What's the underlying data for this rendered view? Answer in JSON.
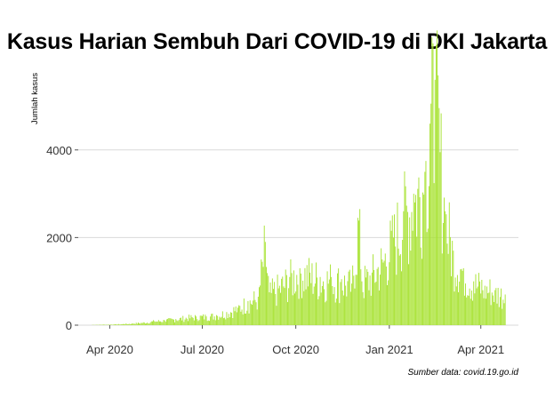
{
  "chart_data": {
    "type": "bar",
    "title": "Kasus Harian Sembuh Dari COVID-19 di DKI Jakarta",
    "ylabel": "Jumlah kasus",
    "xlabel": "",
    "caption": "Sumber data: covid.19.go.id",
    "bar_color": "#a6e22e",
    "grid": true,
    "ylim": [
      0,
      5800
    ],
    "xlim": [
      "2020-03-01",
      "2021-05-08"
    ],
    "y_ticks": [
      0,
      2000,
      4000
    ],
    "y_tick_labels": [
      "0",
      "2000",
      "4000"
    ],
    "x_ticks": [
      "2020-04-01",
      "2020-07-01",
      "2020-10-01",
      "2021-01-01",
      "2021-04-01"
    ],
    "x_tick_labels": [
      "Apr 2020",
      "Jul 2020",
      "Oct 2020",
      "Jan 2021",
      "Apr 2021"
    ],
    "series": [
      {
        "x": "2020-03-15",
        "y": 5
      },
      {
        "x": "2020-03-25",
        "y": 10
      },
      {
        "x": "2020-04-05",
        "y": 15
      },
      {
        "x": "2020-04-15",
        "y": 25
      },
      {
        "x": "2020-04-25",
        "y": 40
      },
      {
        "x": "2020-05-05",
        "y": 60
      },
      {
        "x": "2020-05-15",
        "y": 90
      },
      {
        "x": "2020-05-25",
        "y": 110
      },
      {
        "x": "2020-06-05",
        "y": 140
      },
      {
        "x": "2020-06-15",
        "y": 170
      },
      {
        "x": "2020-06-25",
        "y": 200
      },
      {
        "x": "2020-07-05",
        "y": 200
      },
      {
        "x": "2020-07-15",
        "y": 230
      },
      {
        "x": "2020-07-25",
        "y": 300
      },
      {
        "x": "2020-08-05",
        "y": 400
      },
      {
        "x": "2020-08-15",
        "y": 550
      },
      {
        "x": "2020-08-25",
        "y": 650
      },
      {
        "x": "2020-09-01",
        "y": 1900
      },
      {
        "x": "2020-09-05",
        "y": 750
      },
      {
        "x": "2020-09-15",
        "y": 900
      },
      {
        "x": "2020-09-25",
        "y": 1100
      },
      {
        "x": "2020-10-05",
        "y": 1300
      },
      {
        "x": "2020-10-15",
        "y": 1200
      },
      {
        "x": "2020-10-25",
        "y": 1100
      },
      {
        "x": "2020-11-05",
        "y": 1100
      },
      {
        "x": "2020-11-15",
        "y": 1050
      },
      {
        "x": "2020-11-25",
        "y": 950
      },
      {
        "x": "2020-12-03",
        "y": 2650
      },
      {
        "x": "2020-12-05",
        "y": 1000
      },
      {
        "x": "2020-12-15",
        "y": 1200
      },
      {
        "x": "2020-12-25",
        "y": 1500
      },
      {
        "x": "2021-01-05",
        "y": 2000
      },
      {
        "x": "2021-01-15",
        "y": 2600
      },
      {
        "x": "2021-01-25",
        "y": 3000
      },
      {
        "x": "2021-02-05",
        "y": 3500
      },
      {
        "x": "2021-02-10",
        "y": 4600
      },
      {
        "x": "2021-02-15",
        "y": 5600
      },
      {
        "x": "2021-02-25",
        "y": 2600
      },
      {
        "x": "2021-03-05",
        "y": 1700
      },
      {
        "x": "2021-03-15",
        "y": 1300
      },
      {
        "x": "2021-03-25",
        "y": 1000
      },
      {
        "x": "2021-04-05",
        "y": 900
      },
      {
        "x": "2021-04-15",
        "y": 800
      },
      {
        "x": "2021-04-25",
        "y": 700
      }
    ]
  }
}
